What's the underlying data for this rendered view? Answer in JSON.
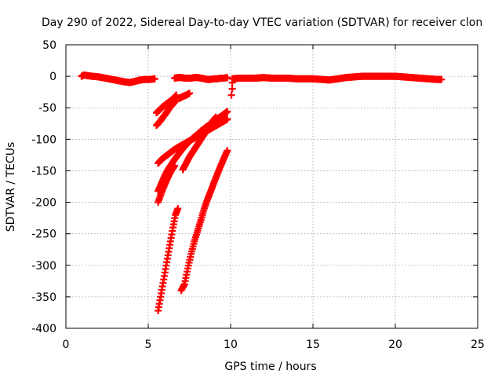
{
  "chart_data": {
    "type": "scatter",
    "title": "Day 290 of 2022, Sidereal Day-to-day VTEC variation (SDTVAR) for receiver clon",
    "xlabel": "GPS time / hours",
    "ylabel": "SDTVAR / TECUs",
    "xlim": [
      0,
      25
    ],
    "ylim": [
      -400,
      50
    ],
    "xticks": [
      0,
      5,
      10,
      15,
      20,
      25
    ],
    "yticks": [
      -400,
      -350,
      -300,
      -250,
      -200,
      -150,
      -100,
      -50,
      0,
      50
    ],
    "xtick_labels": [
      "0",
      "5",
      "10",
      "15",
      "20",
      "25"
    ],
    "ytick_labels": [
      "-400",
      "-350",
      "-300",
      "-250",
      "-200",
      "-150",
      "-100",
      "-50",
      "0",
      "50"
    ],
    "grid": true,
    "legend": false,
    "marker": "plus",
    "color": "#ff0000",
    "series": [
      {
        "x": [
          0.95,
          1.1,
          1.3,
          1.6,
          2.0,
          2.4,
          2.8,
          3.2,
          3.6,
          3.9,
          4.2,
          4.5,
          4.8,
          5.1,
          5.4
        ],
        "y": [
          0,
          2,
          1,
          0,
          -1,
          -3,
          -5,
          -7,
          -9,
          -10,
          -8,
          -6,
          -5,
          -5,
          -4
        ]
      },
      {
        "x": [
          5.5,
          5.7,
          5.9,
          6.1,
          6.3,
          6.5,
          6.7
        ],
        "y": [
          -58,
          -53,
          -48,
          -44,
          -40,
          -36,
          -30
        ]
      },
      {
        "x": [
          5.5,
          5.7,
          5.9,
          6.1,
          6.3,
          6.5,
          6.7
        ],
        "y": [
          -78,
          -72,
          -65,
          -58,
          -50,
          -44,
          -38
        ]
      },
      {
        "x": [
          6.6,
          6.8,
          7.0,
          7.2,
          7.4,
          7.6,
          7.8,
          8.0,
          8.2,
          8.4,
          8.6,
          8.8,
          9.0,
          9.2,
          9.4,
          9.6,
          9.8
        ],
        "y": [
          -3,
          -2,
          -2,
          -3,
          -3,
          -3,
          -2,
          -2,
          -3,
          -4,
          -5,
          -5,
          -4,
          -4,
          -3,
          -3,
          -2
        ]
      },
      {
        "x": [
          6.9,
          7.1,
          7.3,
          7.5
        ],
        "y": [
          -35,
          -32,
          -30,
          -27
        ]
      },
      {
        "x": [
          5.6,
          5.8,
          6.0,
          6.2,
          6.4,
          6.6,
          6.8,
          7.0,
          7.2,
          7.4,
          7.6,
          7.8,
          8.0,
          8.2,
          8.4,
          8.6,
          8.8,
          9.0,
          9.2,
          9.4,
          9.6,
          9.8
        ],
        "y": [
          -138,
          -132,
          -128,
          -124,
          -120,
          -116,
          -113,
          -110,
          -107,
          -104,
          -101,
          -98,
          -95,
          -92,
          -89,
          -86,
          -83,
          -80,
          -77,
          -74,
          -71,
          -68
        ]
      },
      {
        "x": [
          5.6,
          5.8,
          6.0,
          6.2,
          6.4,
          6.6,
          6.8,
          7.0,
          7.2,
          7.4,
          7.6,
          7.8,
          8.0,
          8.2,
          8.4,
          8.6,
          8.8,
          9.0,
          9.2,
          9.4,
          9.6,
          9.8
        ],
        "y": [
          -182,
          -170,
          -158,
          -148,
          -140,
          -132,
          -125,
          -118,
          -112,
          -106,
          -101,
          -96,
          -92,
          -87,
          -83,
          -79,
          -75,
          -71,
          -67,
          -64,
          -60,
          -56
        ]
      },
      {
        "x": [
          5.6,
          5.8,
          6.0,
          6.2,
          6.4,
          6.6
        ],
        "y": [
          -200,
          -185,
          -172,
          -160,
          -150,
          -142
        ]
      },
      {
        "x": [
          7.1,
          7.3,
          7.5,
          7.7,
          7.9,
          8.1,
          8.3,
          8.5,
          8.7,
          8.9,
          9.1
        ],
        "y": [
          -148,
          -138,
          -128,
          -120,
          -112,
          -104,
          -96,
          -88,
          -80,
          -72,
          -65
        ]
      },
      {
        "x": [
          5.6,
          5.75,
          5.9,
          6.05,
          6.2,
          6.35,
          6.5,
          6.65,
          6.8
        ],
        "y": [
          -372,
          -350,
          -328,
          -306,
          -284,
          -262,
          -240,
          -220,
          -210
        ]
      },
      {
        "x": [
          7.0,
          7.1,
          7.2,
          7.4,
          7.6,
          7.8,
          8.0,
          8.2,
          8.4,
          8.6,
          8.8,
          9.0,
          9.2,
          9.4,
          9.6,
          9.8
        ],
        "y": [
          -340,
          -335,
          -330,
          -305,
          -282,
          -262,
          -245,
          -228,
          -210,
          -195,
          -182,
          -168,
          -155,
          -142,
          -130,
          -118
        ]
      },
      {
        "x": [
          10.05,
          10.1,
          10.1
        ],
        "y": [
          -30,
          -20,
          -10
        ]
      },
      {
        "x": [
          10.1,
          10.5,
          11.0,
          11.5,
          12.0,
          12.5,
          13.0,
          13.5,
          14.0,
          14.5,
          15.0,
          15.5,
          16.0,
          16.5,
          17.0,
          17.5,
          18.0,
          18.5,
          19.0,
          19.5,
          20.0,
          20.5,
          21.0,
          21.5,
          22.0,
          22.5,
          22.8
        ],
        "y": [
          -4,
          -3,
          -3,
          -3,
          -2,
          -3,
          -3,
          -3,
          -4,
          -4,
          -4,
          -5,
          -6,
          -4,
          -2,
          -1,
          0,
          0,
          0,
          0,
          0,
          -1,
          -2,
          -3,
          -4,
          -5,
          -5
        ]
      }
    ]
  }
}
